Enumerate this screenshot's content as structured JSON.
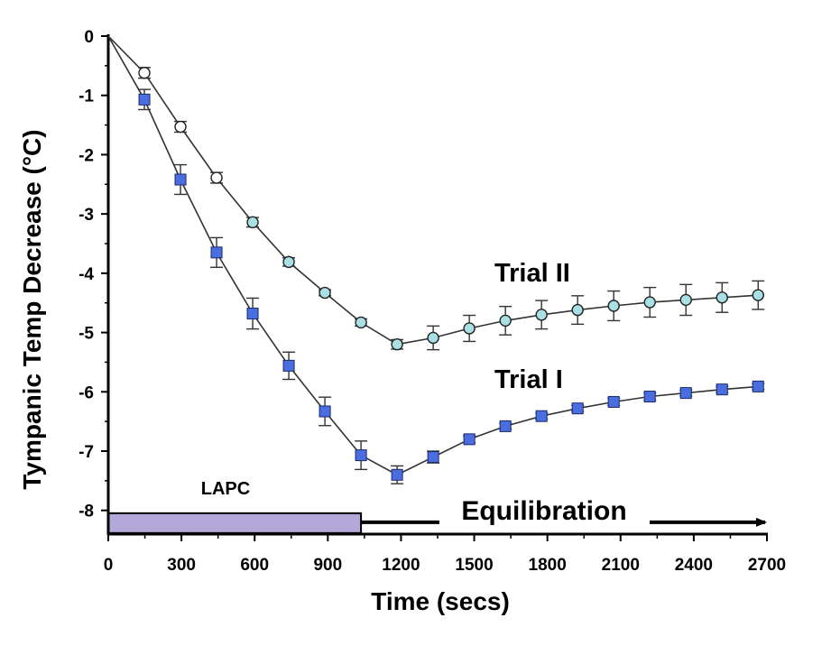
{
  "chart_data": {
    "type": "line",
    "xlabel": "Time (secs)",
    "ylabel": "Tympanic Temp Decrease (°C)",
    "xlim": [
      0,
      2700
    ],
    "ylim": [
      -8.4,
      0
    ],
    "xticks": [
      0,
      300,
      600,
      900,
      1200,
      1500,
      1800,
      2100,
      2400,
      2700
    ],
    "yticks": [
      0,
      -1,
      -2,
      -3,
      -4,
      -5,
      -6,
      -7,
      -8
    ],
    "xtick_labels": [
      "0",
      "300",
      "600",
      "900",
      "1200",
      "1500",
      "1800",
      "2100",
      "2400",
      "2700"
    ],
    "ytick_labels": [
      "0",
      "-1",
      "-2",
      "-3",
      "-4",
      "-5",
      "-6",
      "-7",
      "-8"
    ],
    "grid": false,
    "series": [
      {
        "name": "Trial II",
        "marker": "circle",
        "color": "#a8e0e4",
        "x": [
          0,
          148,
          296,
          444,
          592,
          740,
          888,
          1036,
          1184,
          1332,
          1480,
          1628,
          1776,
          1924,
          2072,
          2220,
          2368,
          2516,
          2664
        ],
        "y": [
          0,
          -0.62,
          -1.53,
          -2.39,
          -3.14,
          -3.81,
          -4.33,
          -4.83,
          -5.2,
          -5.09,
          -4.93,
          -4.8,
          -4.7,
          -4.62,
          -4.55,
          -4.49,
          -4.45,
          -4.41,
          -4.37
        ],
        "err": [
          0,
          0.09,
          0.09,
          0.09,
          0.08,
          0.07,
          0.05,
          0.06,
          0.08,
          0.2,
          0.22,
          0.24,
          0.24,
          0.24,
          0.25,
          0.25,
          0.26,
          0.25,
          0.24
        ]
      },
      {
        "name": "Trial I",
        "marker": "square",
        "color": "#4a6ee0",
        "x": [
          0,
          148,
          296,
          444,
          592,
          740,
          888,
          1036,
          1184,
          1332,
          1480,
          1628,
          1776,
          1924,
          2072,
          2220,
          2368,
          2516,
          2664
        ],
        "y": [
          0,
          -1.07,
          -2.42,
          -3.65,
          -4.68,
          -5.56,
          -6.33,
          -7.07,
          -7.4,
          -7.1,
          -6.8,
          -6.58,
          -6.41,
          -6.28,
          -6.17,
          -6.08,
          -6.02,
          -5.96,
          -5.91
        ],
        "err": [
          0,
          0.17,
          0.25,
          0.25,
          0.26,
          0.23,
          0.24,
          0.24,
          0.15,
          0.1,
          0.06,
          0.05,
          0.05,
          0.05,
          0.06,
          0.06,
          0.05,
          0.05,
          0.05
        ]
      }
    ],
    "annotations": {
      "lapc_label": "LAPC",
      "lapc_bar": {
        "x_start": 0,
        "x_end": 1036,
        "y": -8.2,
        "color": "#b3a8d8"
      },
      "equilibration_label": "Equilibration",
      "equilibration_arrow": {
        "x_start": 1036,
        "x_end": 2700,
        "y": -8.2
      }
    }
  }
}
